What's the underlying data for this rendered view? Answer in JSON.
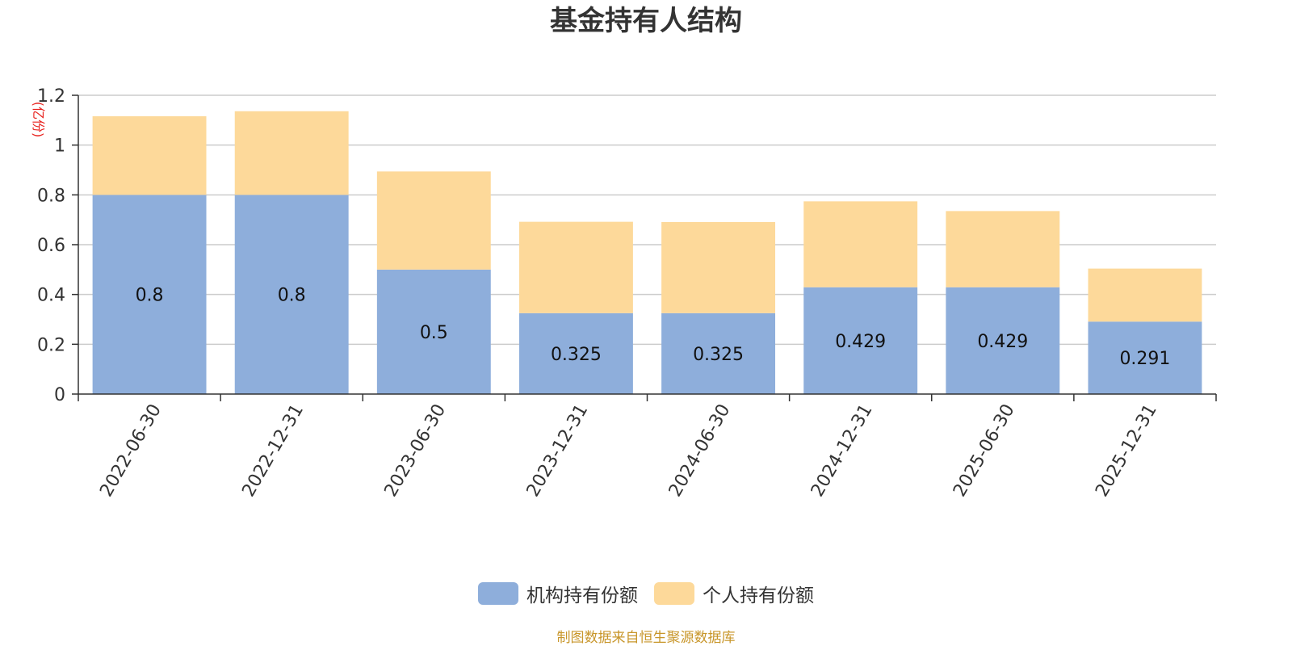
{
  "chart_data": {
    "type": "bar",
    "stacked": true,
    "title": "基金持有人结构",
    "ylabel": "(亿份)",
    "xlabel": "",
    "ylim": [
      0,
      1.2
    ],
    "yticks": [
      0,
      0.2,
      0.4,
      0.6,
      0.8,
      1,
      1.2
    ],
    "ytick_labels": [
      "0",
      "0.2",
      "0.4",
      "0.6",
      "0.8",
      "1",
      "1.2"
    ],
    "categories": [
      "2022-06-30",
      "2022-12-31",
      "2023-06-30",
      "2023-12-31",
      "2024-06-30",
      "2024-12-31",
      "2025-06-30",
      "2025-12-31"
    ],
    "series": [
      {
        "name": "机构持有份额",
        "color": "#8eaedb",
        "values": [
          0.8,
          0.8,
          0.5,
          0.325,
          0.325,
          0.429,
          0.429,
          0.291
        ],
        "labels": [
          "0.8",
          "0.8",
          "0.5",
          "0.325",
          "0.325",
          "0.429",
          "0.429",
          "0.291"
        ]
      },
      {
        "name": "个人持有份额",
        "color": "#fdd99a",
        "values": [
          0.316,
          0.336,
          0.394,
          0.367,
          0.366,
          0.345,
          0.306,
          0.213
        ]
      }
    ],
    "grid": true,
    "legend_position": "bottom-center"
  },
  "footer": {
    "source": "制图数据来自恒生聚源数据库"
  }
}
